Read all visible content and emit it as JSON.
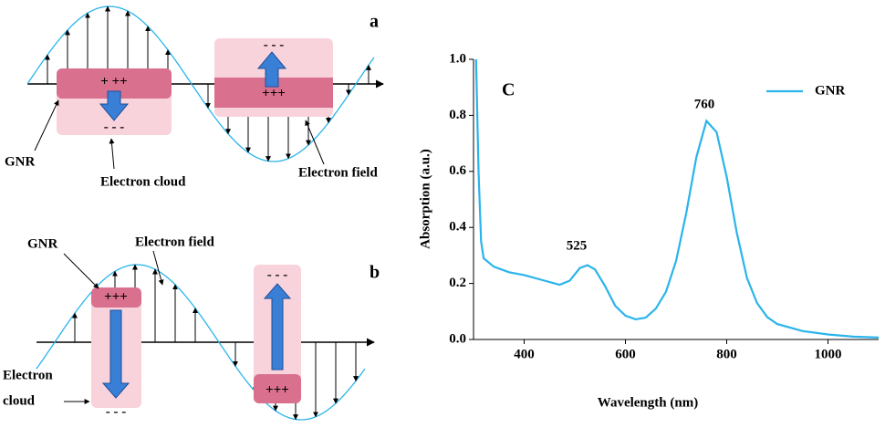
{
  "panel_a": {
    "label": "a",
    "gnr": "GNR",
    "electron_cloud": "Electron cloud",
    "electron_field": "Electron field",
    "charge_left_top": "+ ++",
    "charge_left_bottom": "- - -",
    "charge_right_top": "- - -",
    "charge_right_bottom": "+++"
  },
  "panel_b": {
    "label": "b",
    "gnr": "GNR",
    "electron_field": "Electron field",
    "electron_cloud_line1": "Electron",
    "electron_cloud_line2": "cloud",
    "charge_left_top": "+++",
    "charge_left_bottom": "- - -",
    "charge_right_top": "- - -",
    "charge_right_bottom": "+++"
  },
  "chart_data": {
    "type": "line",
    "panel_label": "C",
    "x_label": "Wavelength (nm)",
    "y_label": "Absorption (a.u.)",
    "x": [
      305,
      310,
      315,
      320,
      340,
      370,
      400,
      440,
      470,
      490,
      510,
      525,
      540,
      560,
      580,
      600,
      620,
      640,
      660,
      680,
      700,
      720,
      740,
      760,
      780,
      800,
      820,
      840,
      860,
      880,
      900,
      950,
      1000,
      1050,
      1100
    ],
    "series": [
      {
        "name": "GNR",
        "color": "#2ab4ea",
        "values": [
          1.0,
          0.6,
          0.35,
          0.29,
          0.26,
          0.24,
          0.23,
          0.21,
          0.195,
          0.21,
          0.255,
          0.265,
          0.25,
          0.19,
          0.12,
          0.085,
          0.072,
          0.078,
          0.11,
          0.17,
          0.28,
          0.45,
          0.65,
          0.78,
          0.74,
          0.58,
          0.38,
          0.22,
          0.13,
          0.08,
          0.055,
          0.03,
          0.018,
          0.01,
          0.007
        ]
      }
    ],
    "annotations": [
      "525",
      "760"
    ],
    "xlim": [
      300,
      1100
    ],
    "xticks": [
      400,
      600,
      800,
      1000
    ],
    "ylim": [
      0,
      1.0
    ],
    "yticks": [
      {
        "value": 0,
        "label": "0.0"
      },
      0.2,
      0.4,
      0.6,
      0.8,
      {
        "value": 1.0,
        "label": "1.0"
      }
    ],
    "legend": "upper right"
  }
}
